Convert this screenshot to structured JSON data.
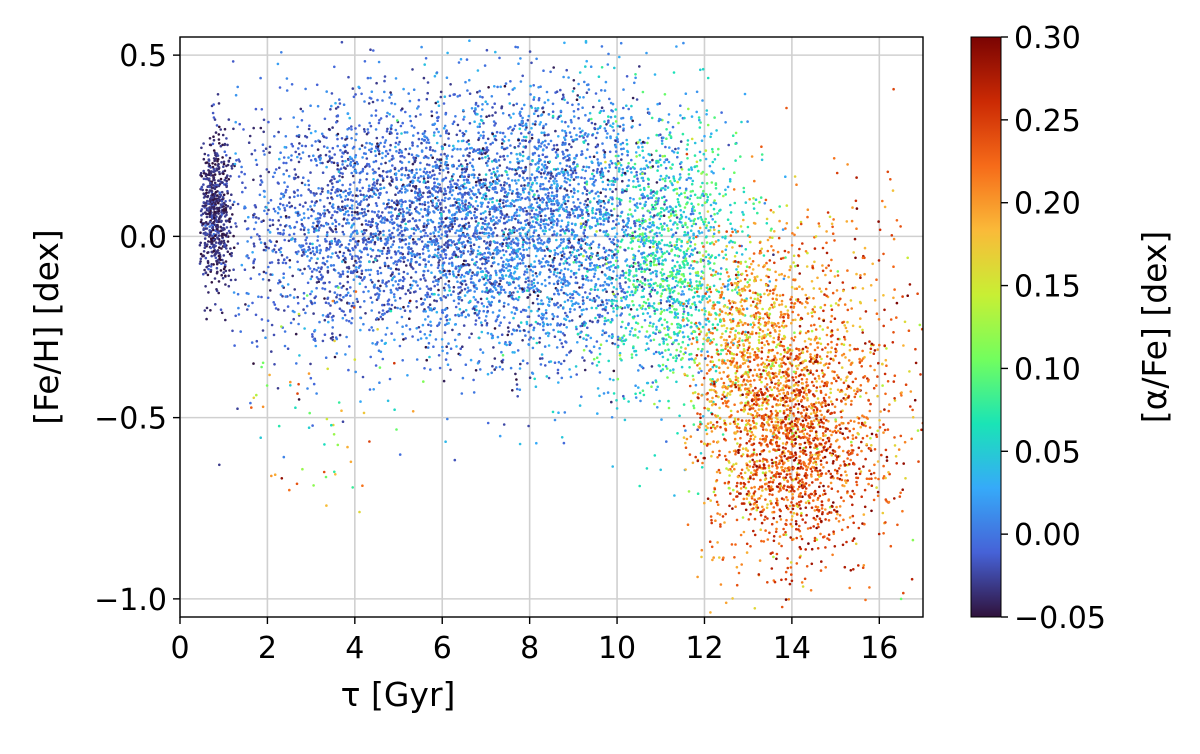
{
  "chart_data": {
    "type": "scatter",
    "title": "",
    "xlabel": "τ [Gyr]",
    "ylabel": "[Fe/H] [dex]",
    "colorbar_label": "[α/Fe] [dex]",
    "xlim": [
      0,
      17
    ],
    "ylim": [
      -1.05,
      0.55
    ],
    "x_ticks": [
      0,
      2,
      4,
      6,
      8,
      10,
      12,
      14,
      16
    ],
    "x_tick_labels": [
      "0",
      "2",
      "4",
      "6",
      "8",
      "10",
      "12",
      "14",
      "16"
    ],
    "y_ticks": [
      0.5,
      0.0,
      -0.5,
      -1.0
    ],
    "y_tick_labels": [
      "0.5",
      "0.0",
      "−0.5",
      "−1.0"
    ],
    "colorbar_range": [
      -0.05,
      0.3
    ],
    "colorbar_ticks": [
      0.3,
      0.25,
      0.2,
      0.15,
      0.1,
      0.05,
      0.0,
      -0.05
    ],
    "colorbar_tick_labels": [
      "0.30",
      "0.25",
      "0.20",
      "0.15",
      "0.10",
      "0.05",
      "0.00",
      "−0.05"
    ],
    "colormap": "turbo",
    "colormap_stops": [
      "#30123b",
      "#4662d7",
      "#36aaf9",
      "#1ae4b6",
      "#72fe5e",
      "#c8ef34",
      "#faba39",
      "#f66b19",
      "#cb2a04",
      "#7a0403"
    ],
    "grid": true,
    "grid_color": "#d0d0d0",
    "points": [
      {
        "x": 0.7,
        "y": 0.1,
        "c": -0.04
      },
      {
        "x": 0.9,
        "y": 0.05,
        "c": -0.04
      },
      {
        "x": 0.8,
        "y": 0.18,
        "c": -0.03
      },
      {
        "x": 1.0,
        "y": -0.1,
        "c": -0.03
      },
      {
        "x": 0.9,
        "y": -0.63,
        "c": -0.03
      },
      {
        "x": 4.0,
        "y": 0.05,
        "c": -0.01
      },
      {
        "x": 6.0,
        "y": 0.1,
        "c": -0.01
      },
      {
        "x": 8.0,
        "y": 0.1,
        "c": 0.0
      },
      {
        "x": 9.0,
        "y": 0.2,
        "c": 0.0
      },
      {
        "x": 6.8,
        "y": -0.1,
        "c": 0.02
      },
      {
        "x": 10.0,
        "y": -0.2,
        "c": 0.05
      },
      {
        "x": 11.0,
        "y": -0.1,
        "c": 0.08
      },
      {
        "x": 12.2,
        "y": 0.0,
        "c": 0.12
      },
      {
        "x": 12.8,
        "y": -0.2,
        "c": 0.16
      },
      {
        "x": 13.0,
        "y": -0.4,
        "c": 0.2
      },
      {
        "x": 13.5,
        "y": -0.5,
        "c": 0.24
      },
      {
        "x": 14.0,
        "y": -0.6,
        "c": 0.25
      },
      {
        "x": 14.5,
        "y": -0.8,
        "c": 0.26
      },
      {
        "x": 14.0,
        "y": -0.95,
        "c": 0.27
      },
      {
        "x": 16.0,
        "y": -0.3,
        "c": 0.22
      },
      {
        "x": 2.5,
        "y": -0.7,
        "c": 0.22
      },
      {
        "x": 3.3,
        "y": -0.65,
        "c": 0.24
      },
      {
        "x": 16.5,
        "y": -1.0,
        "c": 0.1
      }
    ],
    "clusters": [
      {
        "x_mean": 0.8,
        "x_sd": 0.2,
        "y_mean": 0.08,
        "y_sd": 0.11,
        "n": 650,
        "c_mean": -0.035,
        "c_sd": 0.012,
        "x_range": [
          0.45,
          1.3
        ]
      },
      {
        "x_mean": 4.6,
        "x_sd": 1.8,
        "y_mean": 0.04,
        "y_sd": 0.17,
        "n": 2600,
        "c_mean": -0.008,
        "c_sd": 0.018,
        "x_range": [
          1.2,
          10
        ]
      },
      {
        "x_mean": 8.3,
        "x_sd": 1.6,
        "y_mean": 0.02,
        "y_sd": 0.2,
        "n": 3000,
        "c_mean": 0.005,
        "c_sd": 0.025,
        "x_range": [
          2,
          12
        ]
      },
      {
        "x_mean": 11.3,
        "x_sd": 0.9,
        "y_mean": -0.08,
        "y_sd": 0.2,
        "n": 1300,
        "c_mean": 0.065,
        "c_sd": 0.035,
        "x_range": [
          9,
          14
        ]
      },
      {
        "x_mean": 13.4,
        "x_sd": 0.9,
        "y_mean": -0.4,
        "y_sd": 0.2,
        "n": 1800,
        "c_mean": 0.2,
        "c_sd": 0.035,
        "x_range": [
          11.5,
          17
        ]
      },
      {
        "x_mean": 14.1,
        "x_sd": 0.9,
        "y_mean": -0.62,
        "y_sd": 0.16,
        "n": 900,
        "c_mean": 0.25,
        "c_sd": 0.025,
        "x_range": [
          12,
          17
        ]
      },
      {
        "x_mean": 15.6,
        "x_sd": 0.8,
        "y_mean": -0.4,
        "y_sd": 0.25,
        "n": 300,
        "c_mean": 0.22,
        "c_sd": 0.04,
        "x_range": [
          14,
          17
        ]
      },
      {
        "x_mean": 3.2,
        "x_sd": 1.2,
        "y_mean": -0.45,
        "y_sd": 0.15,
        "n": 80,
        "c_mean": 0.15,
        "c_sd": 0.08,
        "x_range": [
          1.5,
          6
        ]
      }
    ]
  }
}
